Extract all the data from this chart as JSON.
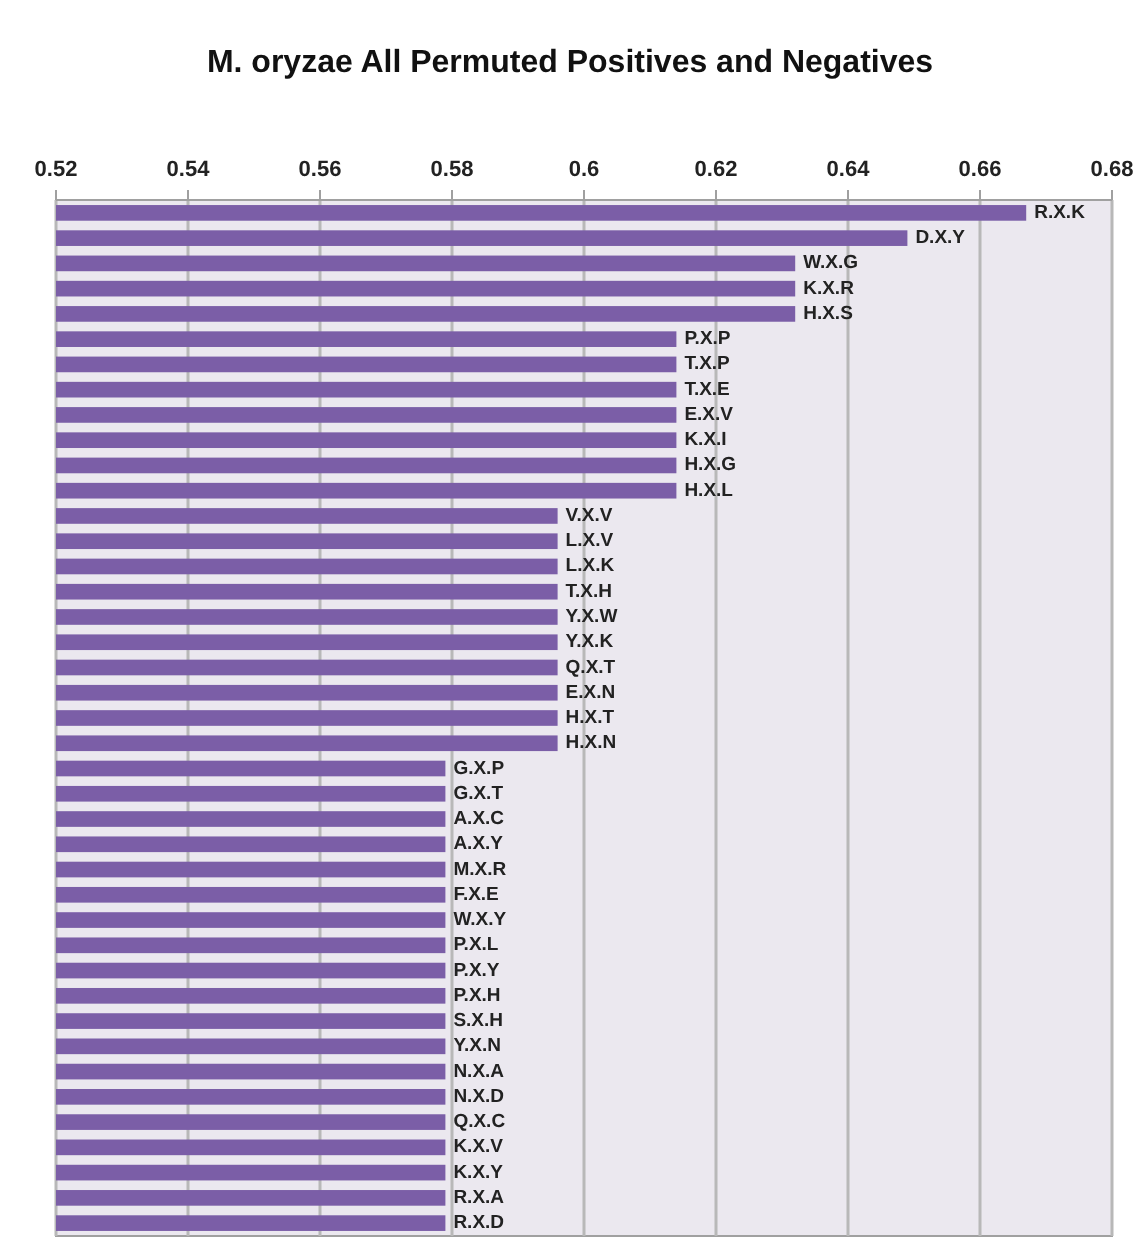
{
  "chart_data": {
    "type": "bar",
    "orientation": "horizontal",
    "title": "M. oryzae All Permuted Positives and Negatives",
    "categories": [
      "R.X.K",
      "D.X.Y",
      "W.X.G",
      "K.X.R",
      "H.X.S",
      "P.X.P",
      "T.X.P",
      "T.X.E",
      "E.X.V",
      "K.X.I",
      "H.X.G",
      "H.X.L",
      "V.X.V",
      "L.X.V",
      "L.X.K",
      "T.X.H",
      "Y.X.W",
      "Y.X.K",
      "Q.X.T",
      "E.X.N",
      "H.X.T",
      "H.X.N",
      "G.X.P",
      "G.X.T",
      "A.X.C",
      "A.X.Y",
      "M.X.R",
      "F.X.E",
      "W.X.Y",
      "P.X.L",
      "P.X.Y",
      "P.X.H",
      "S.X.H",
      "Y.X.N",
      "N.X.A",
      "N.X.D",
      "Q.X.C",
      "K.X.V",
      "K.X.Y",
      "R.X.A",
      "R.X.D"
    ],
    "values": [
      0.667,
      0.649,
      0.632,
      0.632,
      0.632,
      0.614,
      0.614,
      0.614,
      0.614,
      0.614,
      0.614,
      0.614,
      0.596,
      0.596,
      0.596,
      0.596,
      0.596,
      0.596,
      0.596,
      0.596,
      0.596,
      0.596,
      0.579,
      0.579,
      0.579,
      0.579,
      0.579,
      0.579,
      0.579,
      0.579,
      0.579,
      0.579,
      0.579,
      0.579,
      0.579,
      0.579,
      0.579,
      0.579,
      0.579,
      0.579,
      0.579
    ],
    "color": "#7b5ea7",
    "xlim": [
      0.52,
      0.68
    ],
    "xticks": [
      0.52,
      0.54,
      0.56,
      0.58,
      {
        "value": 0.6,
        "label": "0.6"
      },
      0.62,
      0.64,
      0.66,
      0.68
    ],
    "grid": "x"
  }
}
